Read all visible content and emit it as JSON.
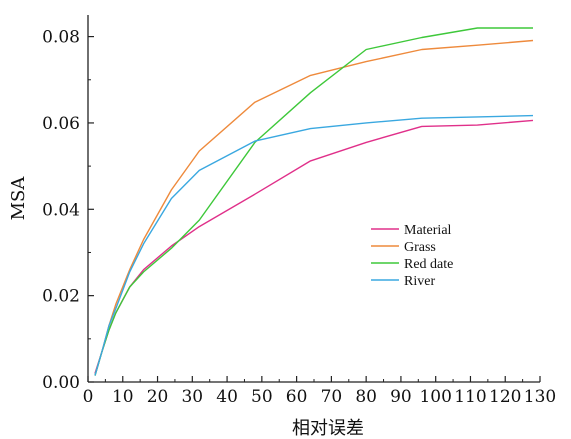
{
  "chart_data": {
    "type": "line",
    "title": "",
    "xlabel": "相对误差",
    "ylabel": "MSA",
    "xlim": [
      0,
      130
    ],
    "ylim": [
      0,
      0.085
    ],
    "x_ticks": [
      "0",
      "10",
      "20",
      "30",
      "40",
      "50",
      "60",
      "70",
      "80",
      "90",
      "100",
      "110",
      "120",
      "130"
    ],
    "y_ticks": [
      "0.00",
      "0.02",
      "0.04",
      "0.06",
      "0.08"
    ],
    "x_tick_values": [
      0,
      10,
      20,
      30,
      40,
      50,
      60,
      70,
      80,
      90,
      100,
      110,
      120,
      130
    ],
    "y_tick_values": [
      0,
      0.02,
      0.04,
      0.06,
      0.08
    ],
    "grid": false,
    "legend_position": "center-right",
    "series": [
      {
        "name": "Material",
        "color": "#e0308a",
        "x": [
          2,
          4,
          6,
          8,
          12,
          16,
          24,
          32,
          48,
          64,
          80,
          96,
          112,
          128
        ],
        "y": [
          0.002,
          0.007,
          0.012,
          0.016,
          0.022,
          0.026,
          0.0315,
          0.036,
          0.0435,
          0.0512,
          0.0555,
          0.0592,
          0.0595,
          0.0606
        ]
      },
      {
        "name": "Grass",
        "color": "#ee8a3c",
        "x": [
          2,
          4,
          6,
          8,
          12,
          16,
          24,
          32,
          48,
          64,
          80,
          96,
          112,
          128
        ],
        "y": [
          0.0015,
          0.007,
          0.013,
          0.018,
          0.026,
          0.033,
          0.0445,
          0.0535,
          0.0648,
          0.071,
          0.0742,
          0.077,
          0.078,
          0.0791
        ]
      },
      {
        "name": "Red date",
        "color": "#3ec83a",
        "x": [
          2,
          4,
          6,
          8,
          12,
          16,
          24,
          32,
          48,
          64,
          80,
          96,
          112,
          128
        ],
        "y": [
          0.0015,
          0.007,
          0.012,
          0.016,
          0.022,
          0.0255,
          0.031,
          0.0375,
          0.0555,
          0.067,
          0.077,
          0.0798,
          0.082,
          0.082
        ]
      },
      {
        "name": "River",
        "color": "#3aa8e0",
        "x": [
          2,
          4,
          6,
          8,
          12,
          16,
          24,
          32,
          48,
          64,
          80,
          96,
          112,
          128
        ],
        "y": [
          0.0015,
          0.007,
          0.013,
          0.017,
          0.0255,
          0.032,
          0.0425,
          0.049,
          0.0558,
          0.0587,
          0.06,
          0.0611,
          0.0614,
          0.0617
        ]
      }
    ]
  }
}
